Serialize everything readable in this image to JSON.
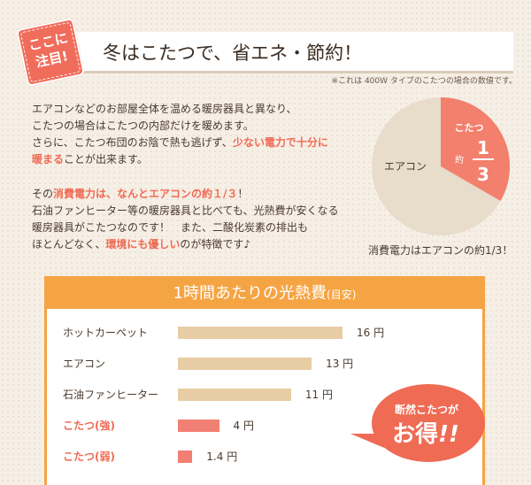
{
  "header": {
    "badge_line1": "ここに",
    "badge_line2": "注目!",
    "title": "冬はこたつで、省エネ・節約！",
    "note": "※これは 400W タイプのこたつの場合の数値です。"
  },
  "para1": {
    "l1": "エアコンなどのお部屋全体を温める暖房器具と異なり、",
    "l2": "こたつの場合はこたつの内部だけを暖めます。",
    "l3a": "さらに、こたつ布団のお陰で熱も逃げず、",
    "l3b": "少ない電力で十分に",
    "l4a": "暖まる",
    "l4b": "ことが出来ます。"
  },
  "para2": {
    "l1a": "その",
    "l1b": "消費電力は、なんとエアコンの約１/３",
    "l1c": "！",
    "l2": "石油ファンヒーター等の暖房器具と比べても、光熱費が安くなる",
    "l3": "暖房器具がこたつなのです！　また、二酸化炭素の排出も",
    "l4a": "ほとんどなく、",
    "l4b": "環境にも優しい",
    "l4c": "のが特徴です♪"
  },
  "pie": {
    "big_label": "エアコン",
    "small_label": "こたつ",
    "approx": "約",
    "num": "1",
    "den": "3",
    "fraction": 0.3333,
    "caption": "消費電力はエアコンの約1/3！",
    "colors": {
      "big": "#e8dccb",
      "small": "#f37f6d"
    }
  },
  "panel": {
    "title": "1時間あたりの光熱費",
    "title_small": "(目安)"
  },
  "chart_data": {
    "type": "bar",
    "categories": [
      "ホットカーペット",
      "エアコン",
      "石油ファンヒーター",
      "こたつ(強)",
      "こたつ(弱)"
    ],
    "values": [
      16,
      13,
      11,
      4,
      1.4
    ],
    "value_labels": [
      "16 円",
      "13 円",
      "11 円",
      "4 円",
      "1.4 円"
    ],
    "highlight": [
      false,
      false,
      false,
      true,
      true
    ],
    "colors": {
      "normal": "#e8cca4",
      "highlight": "#f27f73",
      "header": "#f5a443"
    }
  },
  "callout": {
    "line1": "断然こたつが",
    "line2": "お得",
    "exclaim": "!!"
  }
}
